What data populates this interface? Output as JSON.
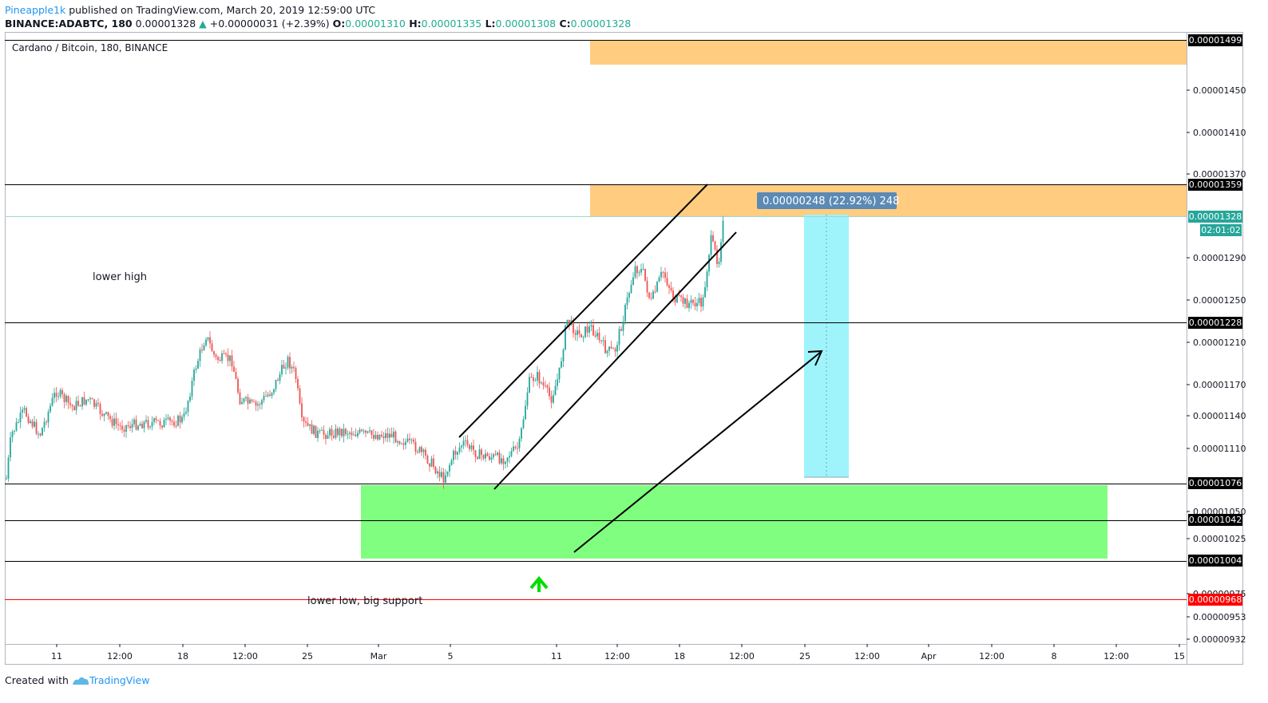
{
  "header": {
    "author": "Pineapple1k",
    "published": " published on TradingView.com, March 20, 2019 12:59:00 UTC",
    "symbol": "BINANCE:ADABTC, 180",
    "last": " 0.00001328 ",
    "change_arrow": "▲",
    "change": " +0.00000031 (+2.39%) ",
    "o_label": "O:",
    "o_val": "0.00001310",
    "h_label": " H:",
    "h_val": "0.00001335",
    "l_label": " L:",
    "l_val": "0.00001308",
    "c_label": " C:",
    "c_val": "0.00001328"
  },
  "footer": {
    "created_with": "Created with ",
    "brand": "TradingView"
  },
  "colors": {
    "up": "#26a69a",
    "down": "#ef5350",
    "orange_zone": "#ffcc80",
    "green_zone": "#80fe80",
    "measure": "#9ff4fc",
    "price_badge": "#26a69a",
    "support_line": "#ff0000"
  },
  "chart_data": {
    "type": "candlestick",
    "title": "Cardano / Bitcoin, 180, BINANCE",
    "x_ticks": [
      "11",
      "12:00",
      "18",
      "12:00",
      "25",
      "Mar",
      "5",
      "11",
      "12:00",
      "18",
      "12:00",
      "25",
      "12:00",
      "Apr",
      "12:00",
      "8",
      "12:00",
      "15"
    ],
    "y_ticks": [
      "0.00001450",
      "0.00001410",
      "0.00001370",
      "0.00001290",
      "0.00001250",
      "0.00001210",
      "0.00001170",
      "0.00001140",
      "0.00001110",
      "0.00001050",
      "0.00001025",
      "0.00000975",
      "0.00000953",
      "0.00000932"
    ],
    "ylim": [
      9.2e-06,
      1.5e-05
    ],
    "price_labels": {
      "resistance_top": "0.00001499",
      "resistance": "0.00001359",
      "last_price": "0.00001328",
      "countdown": "02:01:02",
      "mid_level": "0.00001228",
      "support_top": "0.00001076",
      "support_mid": "0.00001042",
      "support_bottom": "0.00001004",
      "big_support": "0.00000968"
    },
    "annotations": {
      "lower_high": "lower high",
      "lower_low": "lower low, big support",
      "measure": "0.00000248 (22.92%) 248"
    },
    "series": [
      {
        "x": 0.0,
        "y": 1.09e-05
      },
      {
        "x": 0.03,
        "y": 1.15e-05
      },
      {
        "x": 0.06,
        "y": 1.17e-05
      },
      {
        "x": 0.09,
        "y": 1.14e-05
      },
      {
        "x": 0.12,
        "y": 1.13e-05
      },
      {
        "x": 0.15,
        "y": 1.15e-05
      },
      {
        "x": 0.17,
        "y": 1.21e-05
      },
      {
        "x": 0.19,
        "y": 1.18e-05
      },
      {
        "x": 0.21,
        "y": 1.14e-05
      },
      {
        "x": 0.23,
        "y": 1.17e-05
      },
      {
        "x": 0.245,
        "y": 1.2e-05
      },
      {
        "x": 0.255,
        "y": 1.12e-05
      },
      {
        "x": 0.28,
        "y": 1.13e-05
      },
      {
        "x": 0.31,
        "y": 1.13e-05
      },
      {
        "x": 0.33,
        "y": 1.12e-05
      },
      {
        "x": 0.36,
        "y": 1.1e-05
      },
      {
        "x": 0.37,
        "y": 1.07e-05
      },
      {
        "x": 0.38,
        "y": 1.09e-05
      },
      {
        "x": 0.4,
        "y": 1.11e-05
      },
      {
        "x": 0.42,
        "y": 1.11e-05
      },
      {
        "x": 0.44,
        "y": 1.1e-05
      },
      {
        "x": 0.45,
        "y": 1.15e-05
      },
      {
        "x": 0.46,
        "y": 1.2e-05
      },
      {
        "x": 0.47,
        "y": 1.16e-05
      },
      {
        "x": 0.48,
        "y": 1.23e-05
      },
      {
        "x": 0.49,
        "y": 1.25e-05
      },
      {
        "x": 0.5,
        "y": 1.22e-05
      },
      {
        "x": 0.51,
        "y": 1.21e-05
      },
      {
        "x": 0.52,
        "y": 1.25e-05
      },
      {
        "x": 0.53,
        "y": 1.29e-05
      },
      {
        "x": 0.54,
        "y": 1.27e-05
      },
      {
        "x": 0.55,
        "y": 1.28e-05
      },
      {
        "x": 0.57,
        "y": 1.25e-05
      },
      {
        "x": 0.58,
        "y": 1.24e-05
      },
      {
        "x": 0.59,
        "y": 1.26e-05
      },
      {
        "x": 0.6,
        "y": 1.29e-05
      },
      {
        "x": 0.605,
        "y": 1.33e-05
      }
    ]
  }
}
